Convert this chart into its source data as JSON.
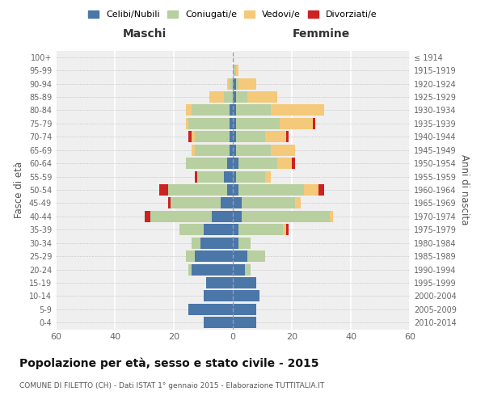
{
  "age_groups": [
    "0-4",
    "5-9",
    "10-14",
    "15-19",
    "20-24",
    "25-29",
    "30-34",
    "35-39",
    "40-44",
    "45-49",
    "50-54",
    "55-59",
    "60-64",
    "65-69",
    "70-74",
    "75-79",
    "80-84",
    "85-89",
    "90-94",
    "95-99",
    "100+"
  ],
  "birth_years": [
    "2010-2014",
    "2005-2009",
    "2000-2004",
    "1995-1999",
    "1990-1994",
    "1985-1989",
    "1980-1984",
    "1975-1979",
    "1970-1974",
    "1965-1969",
    "1960-1964",
    "1955-1959",
    "1950-1954",
    "1945-1949",
    "1940-1944",
    "1935-1939",
    "1930-1934",
    "1925-1929",
    "1920-1924",
    "1915-1919",
    "≤ 1914"
  ],
  "maschi": {
    "celibi": [
      10,
      15,
      10,
      9,
      14,
      13,
      11,
      10,
      7,
      4,
      2,
      3,
      2,
      1,
      1,
      1,
      1,
      0,
      0,
      0,
      0
    ],
    "coniugati": [
      0,
      0,
      0,
      0,
      1,
      3,
      3,
      8,
      21,
      17,
      20,
      9,
      14,
      12,
      12,
      14,
      13,
      3,
      1,
      0,
      0
    ],
    "vedovi": [
      0,
      0,
      0,
      0,
      0,
      0,
      0,
      0,
      0,
      0,
      0,
      0,
      0,
      1,
      1,
      1,
      2,
      5,
      1,
      0,
      0
    ],
    "divorziati": [
      0,
      0,
      0,
      0,
      0,
      0,
      0,
      0,
      2,
      1,
      3,
      1,
      0,
      0,
      1,
      0,
      0,
      0,
      0,
      0,
      0
    ]
  },
  "femmine": {
    "nubili": [
      8,
      8,
      9,
      8,
      4,
      5,
      2,
      2,
      3,
      3,
      2,
      1,
      2,
      1,
      1,
      1,
      1,
      1,
      1,
      0,
      0
    ],
    "coniugate": [
      0,
      0,
      0,
      0,
      2,
      6,
      4,
      15,
      30,
      18,
      22,
      10,
      13,
      12,
      10,
      15,
      12,
      4,
      1,
      1,
      0
    ],
    "vedove": [
      0,
      0,
      0,
      0,
      0,
      0,
      0,
      1,
      1,
      2,
      5,
      2,
      5,
      8,
      7,
      11,
      18,
      10,
      6,
      1,
      0
    ],
    "divorziate": [
      0,
      0,
      0,
      0,
      0,
      0,
      0,
      1,
      0,
      0,
      2,
      0,
      1,
      0,
      1,
      1,
      0,
      0,
      0,
      0,
      0
    ]
  },
  "colors": {
    "celibi": "#4a76a8",
    "coniugati": "#b8cfa0",
    "vedovi": "#f5c97a",
    "divorziati": "#cc2222"
  },
  "xlim": 60,
  "title": "Popolazione per età, sesso e stato civile - 2015",
  "subtitle": "COMUNE DI FILETTO (CH) - Dati ISTAT 1° gennaio 2015 - Elaborazione TUTTITALIA.IT",
  "ylabel_left": "Fasce di età",
  "ylabel_right": "Anni di nascita",
  "xlabel_left": "Maschi",
  "xlabel_right": "Femmine",
  "legend_labels": [
    "Celibi/Nubili",
    "Coniugati/e",
    "Vedovi/e",
    "Divorziati/e"
  ],
  "bg_color": "#efefef",
  "plot_bg": "#efefef"
}
